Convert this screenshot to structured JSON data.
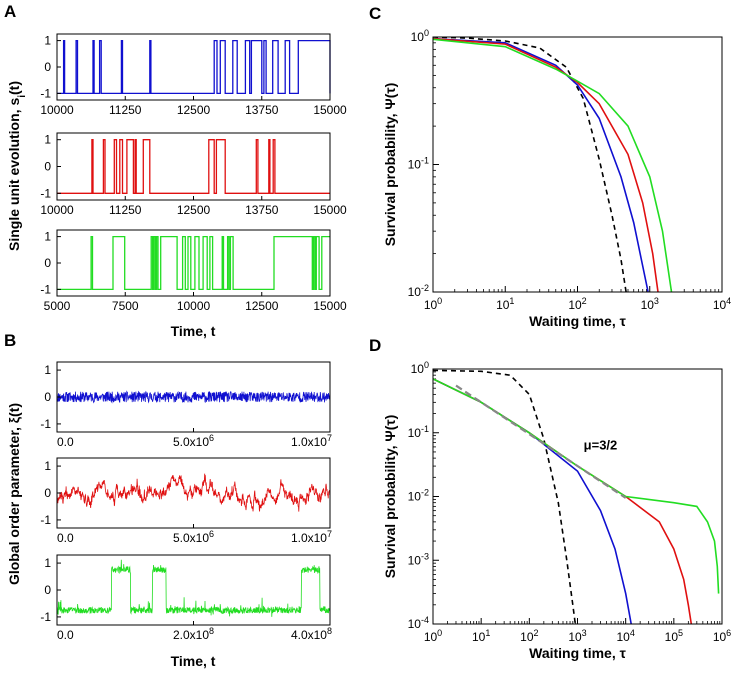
{
  "panel_labels": {
    "a": "A",
    "b": "B",
    "c": "C",
    "d": "D"
  },
  "colors": {
    "blue": "#1010d0",
    "red": "#e01010",
    "green": "#22dd22",
    "dashed": "#000000",
    "gray": "#888888"
  },
  "chart_data": [
    {
      "id": "A",
      "type": "line",
      "title": "",
      "ylabel": "Single unit evolution, s",
      "ylabel_sub": "i",
      "ylabel_tail": "(t)",
      "xlabel": "Time, t",
      "subplots": [
        {
          "color": "blue",
          "xlim": [
            10000,
            15000
          ],
          "ylim": [
            -1.25,
            1.25
          ],
          "xticklabels": [
            "10000",
            "11250",
            "12500",
            "13750",
            "15000"
          ],
          "yticklabels": [
            "1",
            "0",
            "-1"
          ],
          "switches": [
            10120,
            10140,
            10350,
            10375,
            10660,
            10680,
            10780,
            10810,
            11180,
            11200,
            11700,
            11720,
            12880,
            12930,
            12990,
            13080,
            13220,
            13300,
            13450,
            13530,
            13560,
            13750,
            13790,
            13830,
            13950,
            14050,
            14180,
            14260,
            14420,
            15000
          ]
        },
        {
          "color": "red",
          "xlim": [
            10000,
            15000
          ],
          "ylim": [
            -1.25,
            1.25
          ],
          "xticklabels": [
            "10000",
            "11250",
            "12500",
            "13750",
            "15000"
          ],
          "yticklabels": [
            "1",
            "0",
            "-1"
          ],
          "switches": [
            10640,
            10660,
            10850,
            10880,
            11050,
            11090,
            11150,
            11200,
            11280,
            11400,
            11430,
            11450,
            11580,
            11700,
            12780,
            12880,
            12920,
            13080,
            13650,
            13680,
            13880,
            13900,
            13960,
            13990
          ]
        },
        {
          "color": "green",
          "xlim": [
            5000,
            15000
          ],
          "ylim": [
            -1.25,
            1.25
          ],
          "xticklabels": [
            "5000",
            "7500",
            "10000",
            "12500",
            "15000"
          ],
          "yticklabels": [
            "1",
            "0",
            "-1"
          ],
          "switches": [
            6250,
            6300,
            7050,
            7480,
            8450,
            8500,
            8550,
            8600,
            8650,
            8700,
            8800,
            9400,
            9600,
            9700,
            9800,
            9900,
            10050,
            10200,
            10350,
            10500,
            10600,
            10700,
            11050,
            11100,
            11250,
            11300,
            11350,
            11450,
            12950,
            14350,
            14400,
            14450,
            14500,
            14600,
            14700
          ]
        }
      ]
    },
    {
      "id": "B",
      "type": "line",
      "ylabel": "Global order parameter, ξ(t)",
      "xlabel": "Time, t",
      "subplots": [
        {
          "color": "blue",
          "xlim": [
            0,
            10000000
          ],
          "ylim": [
            -1.3,
            1.3
          ],
          "xticklabels": [
            "0.0",
            "5.0x10",
            "1.0x10"
          ],
          "xtick_exponents": [
            "",
            "6",
            "7"
          ],
          "yticklabels": [
            "1",
            "0",
            "-1"
          ],
          "noise_amplitude": 0.2,
          "regime": "noise"
        },
        {
          "color": "red",
          "xlim": [
            0,
            10000000
          ],
          "ylim": [
            -1.3,
            1.3
          ],
          "xticklabels": [
            "0.0",
            "5.0x10",
            "1.0x10"
          ],
          "xtick_exponents": [
            "",
            "6",
            "7"
          ],
          "yticklabels": [
            "1",
            "0",
            "-1"
          ],
          "noise_amplitude": 0.25,
          "regime": "correlated"
        },
        {
          "color": "green",
          "xlim": [
            0,
            400000000
          ],
          "ylim": [
            -1.3,
            1.3
          ],
          "xticklabels": [
            "0.0",
            "2.0x10",
            "4.0x10"
          ],
          "xtick_exponents": [
            "",
            "8",
            "8"
          ],
          "yticklabels": [
            "1",
            "0",
            "-1"
          ],
          "noise_amplitude": 0.12,
          "regime": "bistable",
          "switch_times": [
            80000000,
            108000000,
            140000000,
            160000000,
            358000000,
            385000000
          ],
          "levels": [
            -0.75,
            0.75
          ]
        }
      ]
    },
    {
      "id": "C",
      "type": "line",
      "xscale": "log",
      "yscale": "log",
      "xlim": [
        1,
        10000
      ],
      "ylim": [
        0.01,
        1
      ],
      "xlabel": "Waiting time, τ",
      "ylabel": "Survival probability, Ψ(τ)",
      "xticklabels": [
        "10",
        "10",
        "10",
        "10",
        "10"
      ],
      "xtick_exponents": [
        "0",
        "1",
        "2",
        "3",
        "4"
      ],
      "yticklabels": [
        "10",
        "10",
        "10"
      ],
      "ytick_exponents": [
        "0",
        "-1",
        "-2"
      ],
      "series": [
        {
          "name": "dashed",
          "color": "dashed",
          "dashed": true,
          "x": [
            1,
            3,
            10,
            30,
            70,
            120,
            200,
            300,
            400,
            470
          ],
          "y": [
            1.0,
            0.98,
            0.93,
            0.82,
            0.58,
            0.33,
            0.11,
            0.04,
            0.018,
            0.01
          ]
        },
        {
          "name": "blue",
          "color": "blue",
          "x": [
            1,
            10,
            50,
            100,
            200,
            400,
            600,
            800,
            950
          ],
          "y": [
            0.97,
            0.9,
            0.6,
            0.42,
            0.23,
            0.08,
            0.035,
            0.016,
            0.01
          ]
        },
        {
          "name": "red",
          "color": "red",
          "x": [
            1,
            10,
            50,
            100,
            200,
            500,
            800,
            1100,
            1300
          ],
          "y": [
            0.97,
            0.88,
            0.58,
            0.44,
            0.3,
            0.12,
            0.05,
            0.02,
            0.01
          ]
        },
        {
          "name": "green",
          "color": "green",
          "x": [
            1,
            10,
            50,
            100,
            200,
            500,
            1000,
            1500,
            2000
          ],
          "y": [
            0.96,
            0.84,
            0.56,
            0.45,
            0.36,
            0.2,
            0.08,
            0.03,
            0.01
          ]
        }
      ]
    },
    {
      "id": "D",
      "type": "line",
      "xscale": "log",
      "yscale": "log",
      "xlim": [
        1,
        1000000
      ],
      "ylim": [
        0.0001,
        1
      ],
      "xlabel": "Waiting time, τ",
      "ylabel": "Survival probability, Ψ(τ)",
      "xticklabels": [
        "10",
        "10",
        "10",
        "10",
        "10",
        "10",
        "10"
      ],
      "xtick_exponents": [
        "0",
        "1",
        "2",
        "3",
        "4",
        "5",
        "6"
      ],
      "yticklabels": [
        "10",
        "10",
        "10",
        "10",
        "10"
      ],
      "ytick_exponents": [
        "0",
        "-1",
        "-2",
        "-3",
        "-4"
      ],
      "annotation": "μ=3/2",
      "series": [
        {
          "name": "dashed",
          "color": "dashed",
          "dashed": true,
          "x": [
            1,
            10,
            40,
            100,
            200,
            400,
            600,
            800,
            900
          ],
          "y": [
            0.95,
            0.92,
            0.8,
            0.4,
            0.08,
            0.008,
            0.001,
            0.0002,
            0.0001
          ]
        },
        {
          "name": "blue",
          "color": "blue",
          "x": [
            1,
            10,
            100,
            1000,
            3000,
            6000,
            10000,
            13000
          ],
          "y": [
            0.7,
            0.3,
            0.1,
            0.025,
            0.006,
            0.0015,
            0.0003,
            0.0001
          ]
        },
        {
          "name": "red",
          "color": "red",
          "x": [
            1,
            10,
            100,
            1000,
            10000,
            50000,
            100000,
            160000,
            200000,
            230000
          ],
          "y": [
            0.7,
            0.3,
            0.1,
            0.03,
            0.01,
            0.004,
            0.0015,
            0.0005,
            0.0002,
            0.0001
          ]
        },
        {
          "name": "green",
          "color": "green",
          "x": [
            1,
            10,
            100,
            1000,
            10000,
            100000,
            300000,
            500000,
            700000,
            800000,
            850000
          ],
          "y": [
            0.7,
            0.3,
            0.1,
            0.03,
            0.01,
            0.008,
            0.007,
            0.004,
            0.002,
            0.0008,
            0.0003
          ]
        },
        {
          "name": "power-law",
          "color": "gray",
          "dashed": true,
          "x": [
            3,
            10000
          ],
          "y": [
            0.55,
            0.0095
          ]
        }
      ]
    }
  ]
}
